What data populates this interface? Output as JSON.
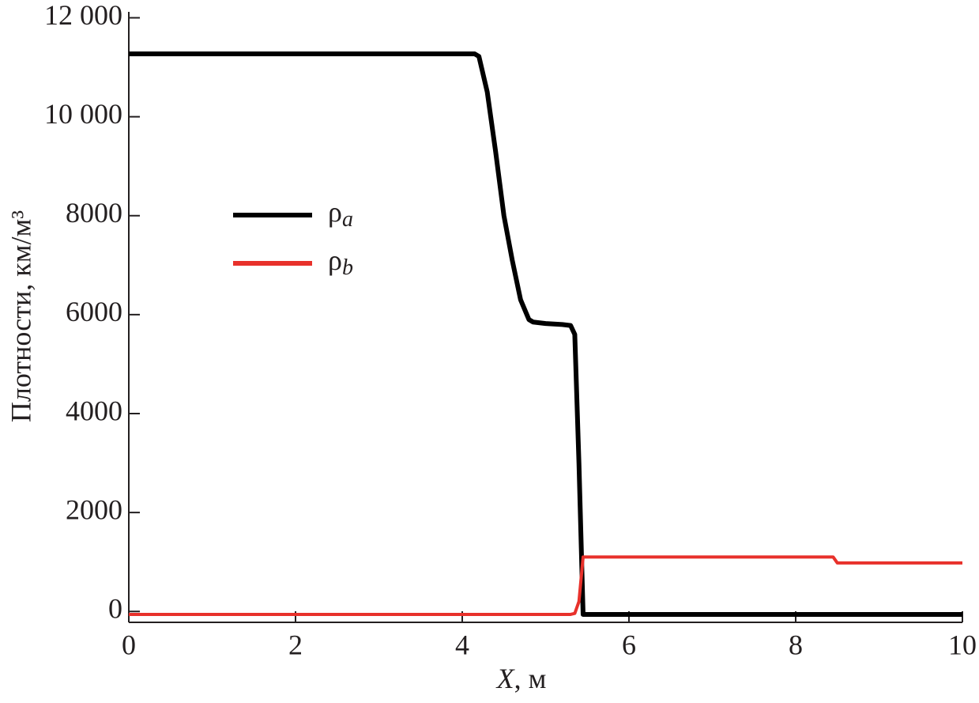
{
  "chart_data": {
    "type": "line",
    "x_label": "X, м",
    "y_label": "Плотности, км/м³",
    "x": [
      0,
      4.15,
      4.2,
      4.3,
      4.4,
      4.5,
      4.6,
      4.7,
      4.8,
      4.85,
      5.0,
      5.2,
      5.3,
      5.35,
      5.4,
      5.45,
      5.5,
      8.45,
      8.5,
      10
    ],
    "series": [
      {
        "name": "ρa",
        "color": "#000000",
        "width": 6,
        "values": [
          11270,
          11270,
          11220,
          10500,
          9300,
          8000,
          7100,
          6300,
          5900,
          5850,
          5820,
          5800,
          5780,
          5600,
          3000,
          -60,
          -60,
          -60,
          -60,
          -60
        ]
      },
      {
        "name": "ρb",
        "color": "#e8312b",
        "width": 4,
        "values": [
          -60,
          -60,
          -60,
          -60,
          -60,
          -60,
          -60,
          -60,
          -60,
          -60,
          -60,
          -60,
          -60,
          -40,
          200,
          1100,
          1100,
          1100,
          980,
          980
        ]
      }
    ],
    "xlim": [
      0,
      10
    ],
    "xticks": [
      0,
      2,
      4,
      6,
      8,
      10
    ],
    "ylim": [
      -220,
      12120
    ],
    "yticks": [
      0,
      2000,
      4000,
      6000,
      8000,
      {
        "value": 10000,
        "label": "10 000"
      },
      {
        "value": 12000,
        "label": "12 000"
      }
    ],
    "legend": "upper left",
    "grid": false
  }
}
